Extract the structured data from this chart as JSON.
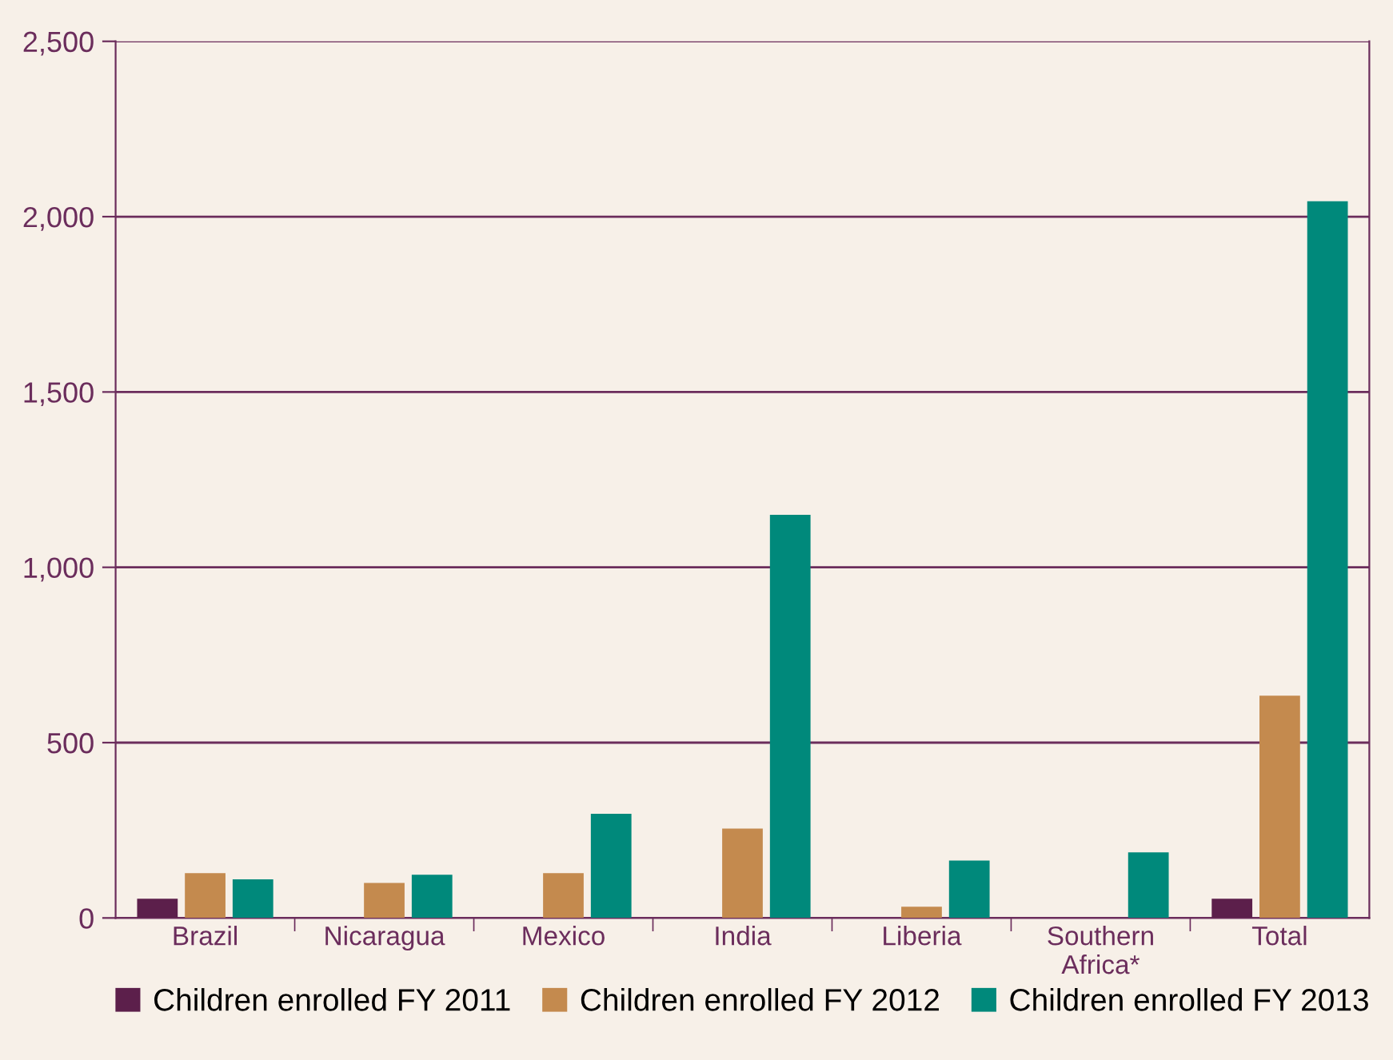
{
  "chart_data": {
    "type": "bar",
    "categories": [
      "Brazil",
      "Nicaragua",
      "Mexico",
      "India",
      "Liberia",
      "Southern\nAfrica*",
      "Total"
    ],
    "series": [
      {
        "name": "Children enrolled FY 2011",
        "color": "#5c1f4b",
        "values": [
          55,
          null,
          null,
          null,
          null,
          null,
          55
        ]
      },
      {
        "name": "Children enrolled FY 2012",
        "color": "#c48a4e",
        "values": [
          128,
          100,
          128,
          255,
          32,
          null,
          634
        ]
      },
      {
        "name": "Children enrolled FY 2013",
        "color": "#00897b",
        "values": [
          110,
          123,
          297,
          1150,
          164,
          187,
          2044
        ]
      }
    ],
    "ylim": [
      0,
      2500
    ],
    "yticks": [
      {
        "value": 0,
        "label": "0"
      },
      {
        "value": 500,
        "label": "500"
      },
      {
        "value": 1000,
        "label": "1,000"
      },
      {
        "value": 1500,
        "label": "1,500"
      },
      {
        "value": 2000,
        "label": "2,000"
      },
      {
        "value": 2500,
        "label": "2,500"
      }
    ],
    "grid": "y",
    "legend": "bottom"
  }
}
